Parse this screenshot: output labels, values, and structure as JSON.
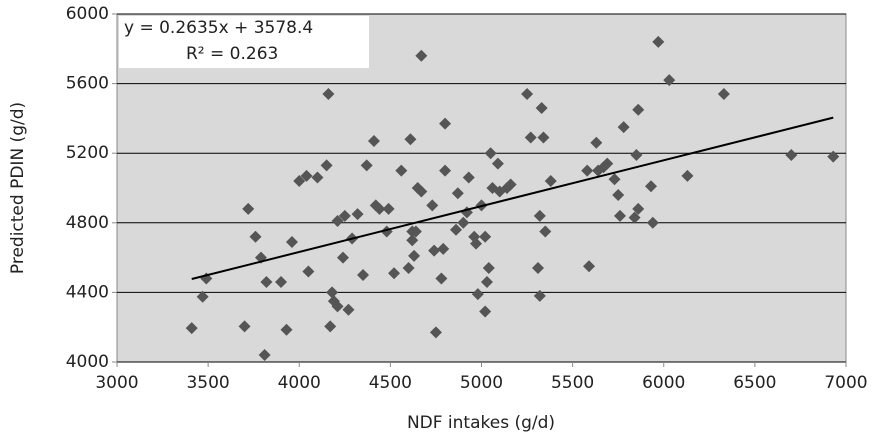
{
  "chart_data": {
    "type": "scatter",
    "x_label": "NDF intakes (g/d)",
    "y_label": "Predicted PDIN (g/d)",
    "xlim": [
      3000,
      7000
    ],
    "ylim": [
      4000,
      6000
    ],
    "xticks": [
      3000,
      3500,
      4000,
      4500,
      5000,
      5500,
      6000,
      6500,
      7000
    ],
    "yticks": [
      4000,
      4400,
      4800,
      5200,
      5600,
      6000
    ],
    "grid": true,
    "color": "#555555",
    "x": [
      3410,
      3470,
      3490,
      3700,
      3720,
      3760,
      3790,
      3810,
      3820,
      3900,
      3930,
      3960,
      4000,
      4040,
      4050,
      4100,
      4150,
      4160,
      4170,
      4180,
      4190,
      4210,
      4210,
      4250,
      4240,
      4270,
      4290,
      4320,
      4350,
      4370,
      4410,
      4420,
      4440,
      4480,
      4490,
      4520,
      4560,
      4600,
      4610,
      4620,
      4620,
      4630,
      4640,
      4650,
      4670,
      4670,
      4730,
      4740,
      4750,
      4780,
      4790,
      4800,
      4800,
      4860,
      4870,
      4900,
      4920,
      4930,
      4960,
      4970,
      4980,
      5000,
      5020,
      5020,
      5030,
      5040,
      5050,
      5060,
      5090,
      5100,
      5140,
      5160,
      5250,
      5270,
      5310,
      5320,
      5320,
      5330,
      5340,
      5350,
      5380,
      5580,
      5590,
      5630,
      5640,
      5670,
      5690,
      5730,
      5750,
      5760,
      5780,
      5840,
      5850,
      5860,
      5860,
      5930,
      5940,
      5970,
      6030,
      6130,
      6330,
      6700,
      6930
    ],
    "values": [
      4195,
      4375,
      4480,
      4205,
      4880,
      4720,
      4600,
      4040,
      4460,
      4460,
      4185,
      4690,
      5040,
      5070,
      4520,
      5060,
      5130,
      5540,
      4205,
      4400,
      4350,
      4320,
      4810,
      4840,
      4600,
      4300,
      4710,
      4850,
      4500,
      5130,
      5270,
      4900,
      4880,
      4750,
      4880,
      4510,
      5100,
      4540,
      5280,
      4700,
      4750,
      4610,
      4750,
      5000,
      4980,
      5760,
      4900,
      4640,
      4170,
      4480,
      4650,
      5100,
      5370,
      4760,
      4970,
      4800,
      4860,
      5060,
      4720,
      4680,
      4390,
      4900,
      4290,
      4720,
      4460,
      4540,
      5200,
      5000,
      5140,
      4980,
      5000,
      5020,
      5540,
      5290,
      4540,
      4380,
      4840,
      5460,
      5290,
      4750,
      5040,
      5100,
      4550,
      5260,
      5100,
      5120,
      5140,
      5050,
      4960,
      4840,
      5350,
      4830,
      5190,
      4880,
      5450,
      5010,
      4800,
      5840,
      5620,
      5070,
      5540,
      5190,
      5180
    ],
    "trendline": {
      "slope": 0.2635,
      "intercept": 3578.4,
      "label": "y = 0.2635x + 3578.4",
      "r2_label": "R² = 0.263",
      "color": "#000000"
    }
  }
}
